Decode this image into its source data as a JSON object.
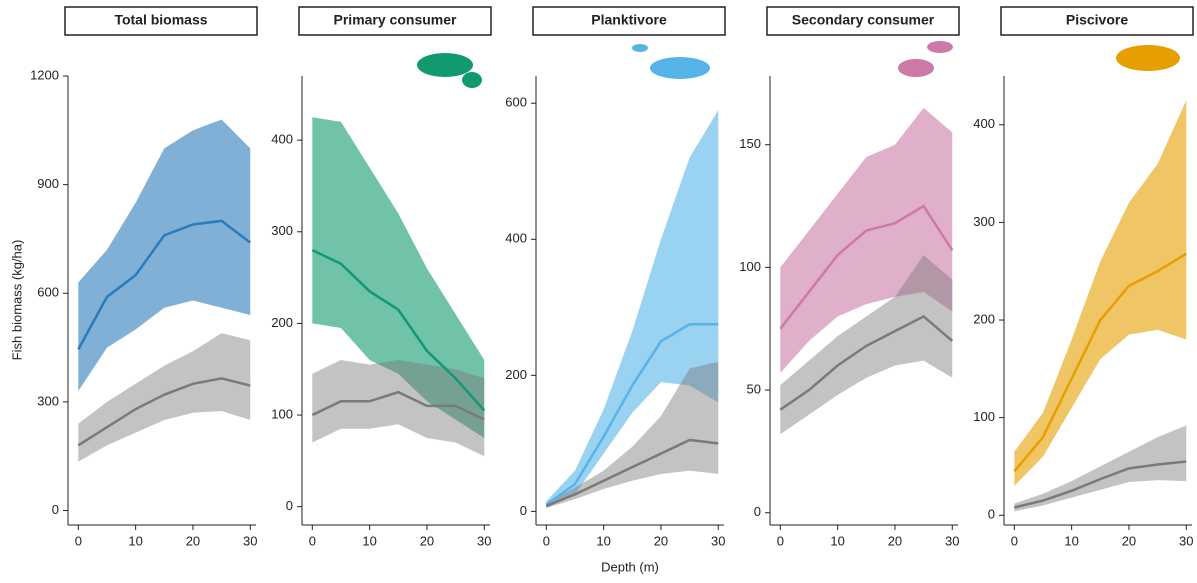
{
  "chart_data": [
    {
      "type": "line",
      "title": "Total biomass",
      "ylabel": "Fish biomass (kg/ha)",
      "x": [
        0,
        5,
        10,
        15,
        20,
        25,
        30
      ],
      "xlim": [
        -1.8,
        31
      ],
      "xticks": [
        0,
        10,
        20,
        30
      ],
      "ylim": [
        -40,
        1200
      ],
      "yticks": [
        0,
        300,
        600,
        900,
        1200
      ],
      "series": [
        {
          "color": "#2b7bba",
          "values": [
            445,
            590,
            650,
            760,
            790,
            800,
            740
          ],
          "lower": [
            330,
            450,
            500,
            560,
            580,
            560,
            540
          ],
          "upper": [
            630,
            720,
            850,
            1000,
            1050,
            1080,
            1000
          ]
        },
        {
          "color": "#7a7a7a",
          "values": [
            180,
            230,
            280,
            320,
            350,
            365,
            345
          ],
          "lower": [
            135,
            180,
            215,
            250,
            270,
            275,
            250
          ],
          "upper": [
            240,
            300,
            350,
            400,
            440,
            490,
            470
          ]
        }
      ]
    },
    {
      "type": "line",
      "title": "Primary consumer",
      "x": [
        0,
        5,
        10,
        15,
        20,
        25,
        30
      ],
      "xlim": [
        -1.8,
        31
      ],
      "xticks": [
        0,
        10,
        20,
        30
      ],
      "ylim": [
        -20,
        470
      ],
      "yticks": [
        0,
        100,
        200,
        300,
        400
      ],
      "series": [
        {
          "color": "#119a70",
          "values": [
            280,
            265,
            235,
            215,
            170,
            140,
            105
          ],
          "lower": [
            200,
            195,
            160,
            145,
            115,
            95,
            75
          ],
          "upper": [
            425,
            420,
            370,
            320,
            260,
            210,
            160
          ]
        },
        {
          "color": "#7a7a7a",
          "values": [
            100,
            115,
            115,
            125,
            110,
            110,
            95
          ],
          "lower": [
            70,
            85,
            85,
            90,
            75,
            70,
            55
          ],
          "upper": [
            145,
            160,
            155,
            160,
            155,
            150,
            140
          ]
        }
      ]
    },
    {
      "type": "line",
      "title": "Planktivore",
      "xlabel": "Depth (m)",
      "x": [
        0,
        5,
        10,
        15,
        20,
        25,
        30
      ],
      "xlim": [
        -1.8,
        31
      ],
      "xticks": [
        0,
        10,
        20,
        30
      ],
      "ylim": [
        -20,
        640
      ],
      "yticks": [
        0,
        200,
        400,
        600
      ],
      "series": [
        {
          "color": "#56b4e9",
          "values": [
            10,
            40,
            110,
            185,
            250,
            275,
            275
          ],
          "lower": [
            5,
            25,
            85,
            145,
            190,
            185,
            160
          ],
          "upper": [
            15,
            60,
            150,
            265,
            400,
            520,
            590
          ]
        },
        {
          "color": "#7a7a7a",
          "values": [
            8,
            25,
            45,
            65,
            85,
            105,
            100
          ],
          "lower": [
            5,
            18,
            33,
            45,
            55,
            60,
            55
          ],
          "upper": [
            12,
            35,
            60,
            95,
            140,
            210,
            220
          ]
        }
      ]
    },
    {
      "type": "line",
      "title": "Secondary consumer",
      "x": [
        0,
        5,
        10,
        15,
        20,
        25,
        30
      ],
      "xlim": [
        -1.8,
        31
      ],
      "xticks": [
        0,
        10,
        20,
        30
      ],
      "ylim": [
        -5,
        178
      ],
      "yticks": [
        0,
        50,
        100,
        150
      ],
      "series": [
        {
          "color": "#cc79a7",
          "values": [
            75,
            90,
            105,
            115,
            118,
            125,
            107
          ],
          "lower": [
            57,
            70,
            80,
            85,
            88,
            90,
            82
          ],
          "upper": [
            100,
            115,
            130,
            145,
            150,
            165,
            155
          ]
        },
        {
          "color": "#7a7a7a",
          "values": [
            42,
            50,
            60,
            68,
            74,
            80,
            70
          ],
          "lower": [
            32,
            40,
            48,
            55,
            60,
            62,
            55
          ],
          "upper": [
            52,
            62,
            72,
            80,
            88,
            105,
            95
          ]
        }
      ]
    },
    {
      "type": "line",
      "title": "Piscivore",
      "x": [
        0,
        5,
        10,
        15,
        20,
        25,
        30
      ],
      "xlim": [
        -1.8,
        31
      ],
      "xticks": [
        0,
        10,
        20,
        30
      ],
      "ylim": [
        -10,
        450
      ],
      "yticks": [
        0,
        100,
        200,
        300,
        400
      ],
      "series": [
        {
          "color": "#e69f00",
          "values": [
            45,
            80,
            140,
            200,
            235,
            250,
            268
          ],
          "lower": [
            30,
            60,
            110,
            160,
            185,
            190,
            180
          ],
          "upper": [
            65,
            105,
            180,
            260,
            320,
            360,
            425
          ]
        },
        {
          "color": "#7a7a7a",
          "values": [
            8,
            15,
            25,
            37,
            48,
            52,
            55
          ],
          "lower": [
            4,
            10,
            18,
            26,
            34,
            36,
            35
          ],
          "upper": [
            12,
            22,
            35,
            50,
            65,
            80,
            92
          ]
        }
      ]
    }
  ]
}
